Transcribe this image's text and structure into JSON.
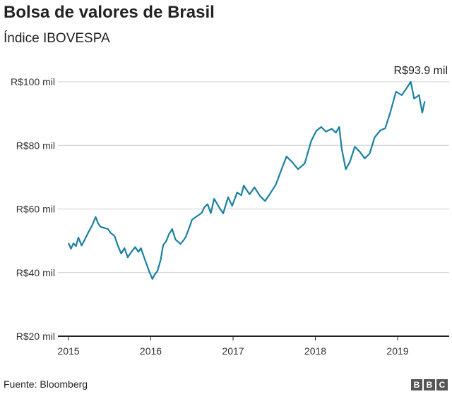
{
  "title": "Bolsa de valores de Brasil",
  "subtitle": "Índice IBOVESPA",
  "footer": "Fuente: Bloomberg",
  "logo": "BBC",
  "chart_data": {
    "type": "line",
    "title": "Bolsa de valores de Brasil",
    "subtitle": "Índice IBOVESPA",
    "ylim": [
      20,
      100
    ],
    "xlim": [
      2014.85,
      2019.6
    ],
    "yticks": [
      {
        "v": 100,
        "label": "R$100 mil"
      },
      {
        "v": 80,
        "label": "R$80 mil"
      },
      {
        "v": 60,
        "label": "R$60 mil"
      },
      {
        "v": 40,
        "label": "R$40 mil"
      },
      {
        "v": 20,
        "label": "R$20 mil"
      }
    ],
    "xticks": [
      {
        "v": 2015,
        "label": "2015"
      },
      {
        "v": 2016,
        "label": "2016"
      },
      {
        "v": 2017,
        "label": "2017"
      },
      {
        "v": 2018,
        "label": "2018"
      },
      {
        "v": 2019,
        "label": "2019"
      }
    ],
    "grid": true,
    "color": "#1a80a0",
    "annotation": "R$93.9 mil",
    "series": [
      {
        "values": [
          [
            2015.0,
            49.3
          ],
          [
            2015.03,
            47.5
          ],
          [
            2015.06,
            49.2
          ],
          [
            2015.09,
            48.3
          ],
          [
            2015.12,
            51
          ],
          [
            2015.16,
            48.5
          ],
          [
            2015.2,
            50.5
          ],
          [
            2015.24,
            52.6
          ],
          [
            2015.29,
            55
          ],
          [
            2015.33,
            57.5
          ],
          [
            2015.36,
            55.5
          ],
          [
            2015.39,
            54.4
          ],
          [
            2015.44,
            54
          ],
          [
            2015.48,
            53.7
          ],
          [
            2015.51,
            52.5
          ],
          [
            2015.56,
            51.5
          ],
          [
            2015.6,
            48.5
          ],
          [
            2015.64,
            46
          ],
          [
            2015.68,
            47.7
          ],
          [
            2015.72,
            44.8
          ],
          [
            2015.75,
            46
          ],
          [
            2015.81,
            48
          ],
          [
            2015.85,
            46.5
          ],
          [
            2015.88,
            47.7
          ],
          [
            2015.93,
            44
          ],
          [
            2015.98,
            40.4
          ],
          [
            2016.02,
            38
          ],
          [
            2016.05,
            39.5
          ],
          [
            2016.08,
            40.4
          ],
          [
            2016.12,
            44
          ],
          [
            2016.15,
            48.6
          ],
          [
            2016.19,
            50
          ],
          [
            2016.22,
            52
          ],
          [
            2016.26,
            53.7
          ],
          [
            2016.3,
            50.4
          ],
          [
            2016.36,
            49
          ],
          [
            2016.4,
            50.2
          ],
          [
            2016.43,
            51.5
          ],
          [
            2016.48,
            55
          ],
          [
            2016.5,
            56.6
          ],
          [
            2016.56,
            57.7
          ],
          [
            2016.62,
            58.8
          ],
          [
            2016.65,
            60.5
          ],
          [
            2016.69,
            61.5
          ],
          [
            2016.73,
            58.7
          ],
          [
            2016.77,
            63.2
          ],
          [
            2016.84,
            60.1
          ],
          [
            2016.88,
            58.6
          ],
          [
            2016.94,
            63.7
          ],
          [
            2016.99,
            61
          ],
          [
            2017.05,
            65.2
          ],
          [
            2017.1,
            64.3
          ],
          [
            2017.13,
            67.4
          ],
          [
            2017.2,
            64.6
          ],
          [
            2017.26,
            66.8
          ],
          [
            2017.33,
            64
          ],
          [
            2017.39,
            62.5
          ],
          [
            2017.45,
            64.8
          ],
          [
            2017.52,
            67.7
          ],
          [
            2017.59,
            72.5
          ],
          [
            2017.65,
            76.5
          ],
          [
            2017.72,
            74.7
          ],
          [
            2017.79,
            72.5
          ],
          [
            2017.87,
            74.3
          ],
          [
            2017.95,
            81.4
          ],
          [
            2018.01,
            84.5
          ],
          [
            2018.07,
            85.8
          ],
          [
            2018.13,
            84.3
          ],
          [
            2018.2,
            85.2
          ],
          [
            2018.25,
            84
          ],
          [
            2018.29,
            85.8
          ],
          [
            2018.32,
            79
          ],
          [
            2018.37,
            72.5
          ],
          [
            2018.42,
            74.8
          ],
          [
            2018.48,
            79.6
          ],
          [
            2018.54,
            78
          ],
          [
            2018.6,
            75.9
          ],
          [
            2018.66,
            77.4
          ],
          [
            2018.72,
            82.5
          ],
          [
            2018.79,
            84.7
          ],
          [
            2018.85,
            85.4
          ],
          [
            2018.91,
            90.3
          ],
          [
            2018.98,
            96.9
          ],
          [
            2019.05,
            95.8
          ],
          [
            2019.11,
            98
          ],
          [
            2019.16,
            100
          ],
          [
            2019.2,
            94.7
          ],
          [
            2019.26,
            95.8
          ],
          [
            2019.3,
            90.3
          ],
          [
            2019.33,
            93.9
          ]
        ]
      }
    ]
  }
}
